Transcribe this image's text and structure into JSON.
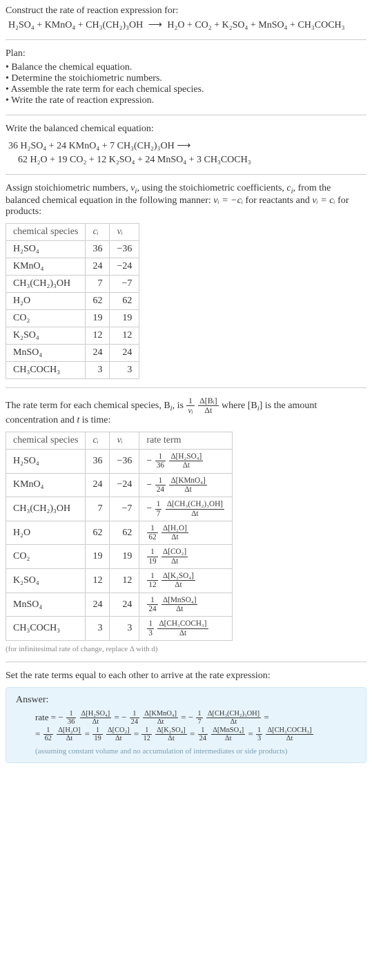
{
  "prompt": {
    "line1": "Construct the rate of reaction expression for:"
  },
  "reactants": [
    "H₂SO₄",
    "KMnO₄",
    "CH₃(CH₂)₃OH"
  ],
  "products": [
    "H₂O",
    "CO₂",
    "K₂SO₄",
    "MnSO₄",
    "CH₃COCH₃"
  ],
  "arrow": "⟶",
  "plan": {
    "heading": "Plan:",
    "items": [
      "Balance the chemical equation.",
      "Determine the stoichiometric numbers.",
      "Assemble the rate term for each chemical species.",
      "Write the rate of reaction expression."
    ]
  },
  "balanced": {
    "intro": "Write the balanced chemical equation:",
    "line1": "36 H₂SO₄ + 24 KMnO₄ + 7 CH₃(CH₂)₃OH ⟶",
    "line2": "62 H₂O + 19 CO₂ + 12 K₂SO₄ + 24 MnSO₄ + 3 CH₃COCH₃"
  },
  "stoich": {
    "intro_a": "Assign stoichiometric numbers, ",
    "intro_b": ", using the stoichiometric coefficients, ",
    "intro_c": ", from the balanced chemical equation in the following manner: ",
    "intro_d": " for reactants and ",
    "intro_e": " for products:",
    "nu": "ν",
    "ci": "c",
    "sub_i": "i",
    "rel1": "νᵢ = −cᵢ",
    "rel2": "νᵢ = cᵢ",
    "headers": [
      "chemical species",
      "cᵢ",
      "νᵢ"
    ],
    "rows": [
      {
        "sp": "H₂SO₄",
        "c": "36",
        "v": "−36"
      },
      {
        "sp": "KMnO₄",
        "c": "24",
        "v": "−24"
      },
      {
        "sp": "CH₃(CH₂)₃OH",
        "c": "7",
        "v": "−7"
      },
      {
        "sp": "H₂O",
        "c": "62",
        "v": "62"
      },
      {
        "sp": "CO₂",
        "c": "19",
        "v": "19"
      },
      {
        "sp": "K₂SO₄",
        "c": "12",
        "v": "12"
      },
      {
        "sp": "MnSO₄",
        "c": "24",
        "v": "24"
      },
      {
        "sp": "CH₃COCH₃",
        "c": "3",
        "v": "3"
      }
    ]
  },
  "rateterm": {
    "intro_a": "The rate term for each chemical species, B",
    "intro_b": ", is ",
    "intro_c": " where [B",
    "intro_d": "] is the amount concentration and ",
    "intro_e": " is time:",
    "t": "t",
    "frac_outer_num": "1",
    "frac_outer_den": "νᵢ",
    "frac_inner_num": "Δ[Bᵢ]",
    "frac_inner_den": "Δt",
    "headers": [
      "chemical species",
      "cᵢ",
      "νᵢ",
      "rate term"
    ],
    "rows": [
      {
        "sp": "H₂SO₄",
        "c": "36",
        "v": "−36",
        "sign": "−",
        "d": "36",
        "num": "Δ[H₂SO₄]",
        "den": "Δt"
      },
      {
        "sp": "KMnO₄",
        "c": "24",
        "v": "−24",
        "sign": "−",
        "d": "24",
        "num": "Δ[KMnO₄]",
        "den": "Δt"
      },
      {
        "sp": "CH₃(CH₂)₃OH",
        "c": "7",
        "v": "−7",
        "sign": "−",
        "d": "7",
        "num": "Δ[CH₃(CH₂)₃OH]",
        "den": "Δt"
      },
      {
        "sp": "H₂O",
        "c": "62",
        "v": "62",
        "sign": "",
        "d": "62",
        "num": "Δ[H₂O]",
        "den": "Δt"
      },
      {
        "sp": "CO₂",
        "c": "19",
        "v": "19",
        "sign": "",
        "d": "19",
        "num": "Δ[CO₂]",
        "den": "Δt"
      },
      {
        "sp": "K₂SO₄",
        "c": "12",
        "v": "12",
        "sign": "",
        "d": "12",
        "num": "Δ[K₂SO₄]",
        "den": "Δt"
      },
      {
        "sp": "MnSO₄",
        "c": "24",
        "v": "24",
        "sign": "",
        "d": "24",
        "num": "Δ[MnSO₄]",
        "den": "Δt"
      },
      {
        "sp": "CH₃COCH₃",
        "c": "3",
        "v": "3",
        "sign": "",
        "d": "3",
        "num": "Δ[CH₃COCH₃]",
        "den": "Δt"
      }
    ],
    "footnote": "(for infinitesimal rate of change, replace Δ with d)"
  },
  "final": {
    "intro": "Set the rate terms equal to each other to arrive at the rate expression:",
    "answer_label": "Answer:",
    "rate_label": "rate = ",
    "eq": " = ",
    "terms": [
      {
        "sign": "−",
        "d": "36",
        "num": "Δ[H₂SO₄]",
        "den": "Δt"
      },
      {
        "sign": "−",
        "d": "24",
        "num": "Δ[KMnO₄]",
        "den": "Δt"
      },
      {
        "sign": "−",
        "d": "7",
        "num": "Δ[CH₃(CH₂)₃OH]",
        "den": "Δt"
      },
      {
        "sign": "",
        "d": "62",
        "num": "Δ[H₂O]",
        "den": "Δt"
      },
      {
        "sign": "",
        "d": "19",
        "num": "Δ[CO₂]",
        "den": "Δt"
      },
      {
        "sign": "",
        "d": "12",
        "num": "Δ[K₂SO₄]",
        "den": "Δt"
      },
      {
        "sign": "",
        "d": "24",
        "num": "Δ[MnSO₄]",
        "den": "Δt"
      },
      {
        "sign": "",
        "d": "3",
        "num": "Δ[CH₃COCH₃]",
        "den": "Δt"
      }
    ],
    "foot": "(assuming constant volume and no accumulation of intermediates or side products)"
  },
  "colors": {
    "text": "#333333",
    "rule": "#cccccc",
    "answer_bg": "#e8f4fb",
    "answer_border": "#cfe7f5",
    "footnote": "#888888"
  }
}
